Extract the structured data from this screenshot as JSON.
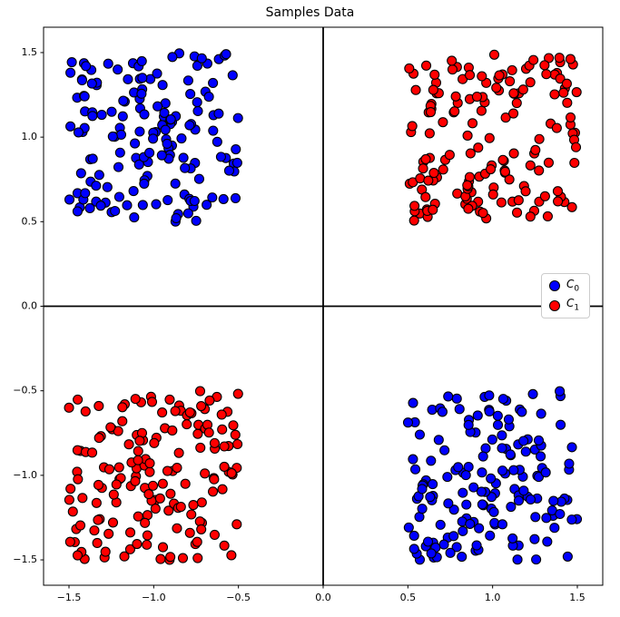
{
  "chart_data": {
    "type": "scatter",
    "title": "Samples Data",
    "xlabel": "",
    "ylabel": "",
    "xlim": [
      -1.65,
      1.65
    ],
    "ylim": [
      -1.65,
      1.65
    ],
    "xticks": [
      -1.5,
      -1.0,
      -0.5,
      0.0,
      0.5,
      1.0,
      1.5
    ],
    "yticks": [
      -1.5,
      -1.0,
      -0.5,
      0.0,
      0.5,
      1.0,
      1.5
    ],
    "xtick_labels": [
      "−1.5",
      "−1.0",
      "−0.5",
      "0.0",
      "0.5",
      "1.0",
      "1.5"
    ],
    "ytick_labels": [
      "−1.5",
      "−1.0",
      "−0.5",
      "0.0",
      "0.5",
      "1.0",
      "1.5"
    ],
    "grid": false,
    "zero_lines": {
      "horizontal": 0,
      "vertical": 0,
      "color": "#000000",
      "width": 1.8
    },
    "marker": {
      "radius_px": 5,
      "edge_color": "#000000",
      "edge_width": 1.1
    },
    "series": [
      {
        "name": "C0",
        "color": "#0000ff",
        "distribution": "uniform",
        "clusters": [
          {
            "x_range": [
              -1.5,
              -0.5
            ],
            "y_range": [
              0.5,
              1.5
            ],
            "n": 160,
            "seed": 11
          },
          {
            "x_range": [
              0.5,
              1.5
            ],
            "y_range": [
              -1.5,
              -0.5
            ],
            "n": 160,
            "seed": 12
          }
        ]
      },
      {
        "name": "C1",
        "color": "#ff0000",
        "distribution": "uniform",
        "clusters": [
          {
            "x_range": [
              0.5,
              1.5
            ],
            "y_range": [
              0.5,
              1.5
            ],
            "n": 160,
            "seed": 13
          },
          {
            "x_range": [
              -1.5,
              -0.5
            ],
            "y_range": [
              -1.5,
              -0.5
            ],
            "n": 160,
            "seed": 14
          }
        ]
      }
    ],
    "legend": {
      "position": "center right",
      "entries": [
        {
          "label_main": "C",
          "label_sub": "0",
          "color": "#0000ff"
        },
        {
          "label_main": "C",
          "label_sub": "1",
          "color": "#ff0000"
        }
      ]
    }
  }
}
